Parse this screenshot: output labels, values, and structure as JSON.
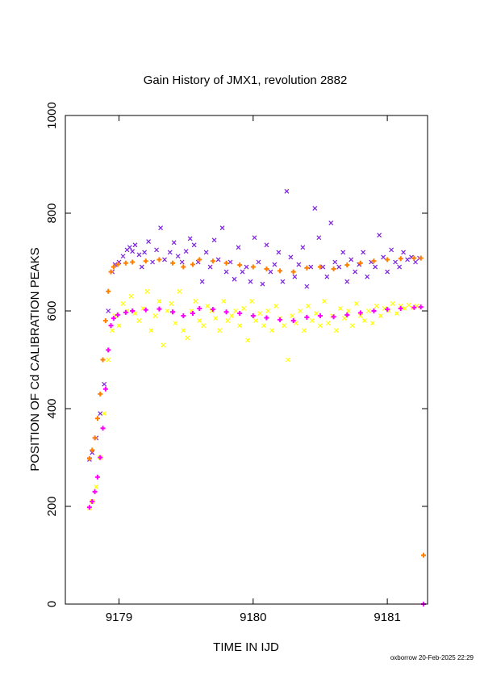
{
  "chart_data": {
    "type": "scatter",
    "title": "Gain History of JMX1, revolution 2882",
    "xlabel": "TIME IN IJD",
    "ylabel": "POSITION OF Cd CALIBRATION PEAKS",
    "footer": "oxborrow 20-Feb-2025 22:29",
    "xlim": [
      9178.6,
      9181.3
    ],
    "ylim": [
      0,
      1000
    ],
    "x_ticks": [
      9179,
      9180,
      9181
    ],
    "x_tick_labels": [
      "9179",
      "9180",
      "9181"
    ],
    "y_ticks": [
      0,
      200,
      400,
      600,
      800,
      1000
    ],
    "y_tick_labels": [
      "0",
      "200",
      "400",
      "600",
      "800",
      "1000"
    ],
    "grid": false,
    "series": [
      {
        "marker": "x",
        "color": "#7b1fe0",
        "points": [
          [
            9178.78,
            296
          ],
          [
            9178.8,
            310
          ],
          [
            9178.83,
            340
          ],
          [
            9178.86,
            390
          ],
          [
            9178.89,
            450
          ],
          [
            9178.92,
            600
          ],
          [
            9178.95,
            680
          ],
          [
            9178.97,
            695
          ],
          [
            9179.0,
            700
          ],
          [
            9179.03,
            712
          ],
          [
            9179.06,
            725
          ],
          [
            9179.08,
            730
          ],
          [
            9179.1,
            722
          ],
          [
            9179.12,
            735
          ],
          [
            9179.15,
            715
          ],
          [
            9179.17,
            690
          ],
          [
            9179.19,
            720
          ],
          [
            9179.22,
            742
          ],
          [
            9179.25,
            700
          ],
          [
            9179.28,
            725
          ],
          [
            9179.31,
            770
          ],
          [
            9179.34,
            705
          ],
          [
            9179.38,
            720
          ],
          [
            9179.41,
            740
          ],
          [
            9179.44,
            712
          ],
          [
            9179.47,
            700
          ],
          [
            9179.5,
            722
          ],
          [
            9179.53,
            748
          ],
          [
            9179.56,
            735
          ],
          [
            9179.59,
            700
          ],
          [
            9179.62,
            660
          ],
          [
            9179.65,
            720
          ],
          [
            9179.68,
            690
          ],
          [
            9179.71,
            745
          ],
          [
            9179.74,
            705
          ],
          [
            9179.77,
            770
          ],
          [
            9179.8,
            680
          ],
          [
            9179.83,
            700
          ],
          [
            9179.86,
            665
          ],
          [
            9179.89,
            730
          ],
          [
            9179.92,
            680
          ],
          [
            9179.95,
            690
          ],
          [
            9179.98,
            660
          ],
          [
            9180.01,
            750
          ],
          [
            9180.04,
            700
          ],
          [
            9180.07,
            655
          ],
          [
            9180.1,
            735
          ],
          [
            9180.13,
            680
          ],
          [
            9180.16,
            695
          ],
          [
            9180.19,
            720
          ],
          [
            9180.22,
            660
          ],
          [
            9180.25,
            845
          ],
          [
            9180.28,
            710
          ],
          [
            9180.31,
            670
          ],
          [
            9180.34,
            695
          ],
          [
            9180.37,
            730
          ],
          [
            9180.4,
            650
          ],
          [
            9180.43,
            690
          ],
          [
            9180.46,
            810
          ],
          [
            9180.49,
            750
          ],
          [
            9180.52,
            690
          ],
          [
            9180.55,
            670
          ],
          [
            9180.58,
            780
          ],
          [
            9180.61,
            700
          ],
          [
            9180.64,
            690
          ],
          [
            9180.67,
            720
          ],
          [
            9180.7,
            660
          ],
          [
            9180.73,
            705
          ],
          [
            9180.76,
            680
          ],
          [
            9180.79,
            695
          ],
          [
            9180.82,
            720
          ],
          [
            9180.85,
            670
          ],
          [
            9180.88,
            700
          ],
          [
            9180.91,
            690
          ],
          [
            9180.94,
            755
          ],
          [
            9180.97,
            710
          ],
          [
            9181.0,
            680
          ],
          [
            9181.03,
            725
          ],
          [
            9181.06,
            700
          ],
          [
            9181.09,
            690
          ],
          [
            9181.12,
            720
          ],
          [
            9181.15,
            705
          ],
          [
            9181.18,
            710
          ],
          [
            9181.21,
            700
          ],
          [
            9181.24,
            708
          ]
        ]
      },
      {
        "marker": "x",
        "color": "#ffff00",
        "points": [
          [
            9178.78,
            196
          ],
          [
            9178.8,
            210
          ],
          [
            9178.83,
            240
          ],
          [
            9178.86,
            300
          ],
          [
            9178.89,
            390
          ],
          [
            9178.92,
            500
          ],
          [
            9178.95,
            560
          ],
          [
            9178.97,
            590
          ],
          [
            9179.0,
            570
          ],
          [
            9179.03,
            615
          ],
          [
            9179.06,
            600
          ],
          [
            9179.09,
            630
          ],
          [
            9179.12,
            595
          ],
          [
            9179.15,
            580
          ],
          [
            9179.18,
            605
          ],
          [
            9179.21,
            640
          ],
          [
            9179.24,
            560
          ],
          [
            9179.27,
            590
          ],
          [
            9179.3,
            620
          ],
          [
            9179.33,
            530
          ],
          [
            9179.36,
            600
          ],
          [
            9179.39,
            615
          ],
          [
            9179.42,
            575
          ],
          [
            9179.45,
            640
          ],
          [
            9179.48,
            560
          ],
          [
            9179.51,
            545
          ],
          [
            9179.54,
            600
          ],
          [
            9179.57,
            620
          ],
          [
            9179.6,
            580
          ],
          [
            9179.63,
            570
          ],
          [
            9179.66,
            610
          ],
          [
            9179.69,
            600
          ],
          [
            9179.72,
            585
          ],
          [
            9179.75,
            560
          ],
          [
            9179.78,
            620
          ],
          [
            9179.81,
            580
          ],
          [
            9179.84,
            590
          ],
          [
            9179.87,
            600
          ],
          [
            9179.9,
            570
          ],
          [
            9179.93,
            605
          ],
          [
            9179.96,
            540
          ],
          [
            9179.99,
            620
          ],
          [
            9180.02,
            580
          ],
          [
            9180.05,
            595
          ],
          [
            9180.08,
            570
          ],
          [
            9180.11,
            600
          ],
          [
            9180.14,
            560
          ],
          [
            9180.17,
            610
          ],
          [
            9180.2,
            585
          ],
          [
            9180.23,
            570
          ],
          [
            9180.26,
            500
          ],
          [
            9180.29,
            590
          ],
          [
            9180.32,
            575
          ],
          [
            9180.35,
            600
          ],
          [
            9180.38,
            560
          ],
          [
            9180.41,
            610
          ],
          [
            9180.44,
            580
          ],
          [
            9180.47,
            595
          ],
          [
            9180.5,
            570
          ],
          [
            9180.53,
            620
          ],
          [
            9180.56,
            575
          ],
          [
            9180.59,
            590
          ],
          [
            9180.62,
            560
          ],
          [
            9180.65,
            605
          ],
          [
            9180.68,
            585
          ],
          [
            9180.71,
            600
          ],
          [
            9180.74,
            570
          ],
          [
            9180.77,
            615
          ],
          [
            9180.8,
            590
          ],
          [
            9180.83,
            580
          ],
          [
            9180.86,
            600
          ],
          [
            9180.89,
            575
          ],
          [
            9180.92,
            610
          ],
          [
            9180.95,
            590
          ],
          [
            9180.98,
            605
          ],
          [
            9181.01,
            600
          ],
          [
            9181.04,
            615
          ],
          [
            9181.07,
            595
          ],
          [
            9181.1,
            610
          ],
          [
            9181.13,
            605
          ],
          [
            9181.16,
            612
          ],
          [
            9181.19,
            606
          ],
          [
            9181.22,
            610
          ]
        ]
      },
      {
        "marker": "+",
        "color": "#ff7f00",
        "points": [
          [
            9178.78,
            298
          ],
          [
            9178.8,
            315
          ],
          [
            9178.82,
            340
          ],
          [
            9178.84,
            380
          ],
          [
            9178.86,
            430
          ],
          [
            9178.88,
            500
          ],
          [
            9178.9,
            580
          ],
          [
            9178.92,
            640
          ],
          [
            9178.94,
            680
          ],
          [
            9178.96,
            690
          ],
          [
            9178.99,
            695
          ],
          [
            9179.05,
            698
          ],
          [
            9179.1,
            700
          ],
          [
            9179.2,
            702
          ],
          [
            9179.3,
            705
          ],
          [
            9179.4,
            698
          ],
          [
            9179.48,
            690
          ],
          [
            9179.55,
            695
          ],
          [
            9179.6,
            705
          ],
          [
            9179.7,
            702
          ],
          [
            9179.8,
            698
          ],
          [
            9179.9,
            694
          ],
          [
            9180.0,
            690
          ],
          [
            9180.1,
            686
          ],
          [
            9180.2,
            682
          ],
          [
            9180.3,
            680
          ],
          [
            9180.4,
            688
          ],
          [
            9180.5,
            690
          ],
          [
            9180.6,
            686
          ],
          [
            9180.7,
            694
          ],
          [
            9180.8,
            698
          ],
          [
            9180.9,
            702
          ],
          [
            9181.0,
            705
          ],
          [
            9181.1,
            707
          ],
          [
            9181.2,
            708
          ],
          [
            9181.25,
            708
          ],
          [
            9181.27,
            100
          ]
        ]
      },
      {
        "marker": "+",
        "color": "#ff00ff",
        "points": [
          [
            9178.78,
            198
          ],
          [
            9178.8,
            210
          ],
          [
            9178.82,
            230
          ],
          [
            9178.84,
            260
          ],
          [
            9178.86,
            300
          ],
          [
            9178.88,
            360
          ],
          [
            9178.9,
            440
          ],
          [
            9178.92,
            520
          ],
          [
            9178.94,
            570
          ],
          [
            9178.96,
            585
          ],
          [
            9178.99,
            592
          ],
          [
            9179.05,
            597
          ],
          [
            9179.1,
            600
          ],
          [
            9179.2,
            602
          ],
          [
            9179.3,
            604
          ],
          [
            9179.4,
            598
          ],
          [
            9179.48,
            590
          ],
          [
            9179.55,
            595
          ],
          [
            9179.6,
            605
          ],
          [
            9179.7,
            603
          ],
          [
            9179.8,
            598
          ],
          [
            9179.9,
            595
          ],
          [
            9180.0,
            590
          ],
          [
            9180.1,
            586
          ],
          [
            9180.2,
            582
          ],
          [
            9180.3,
            580
          ],
          [
            9180.4,
            587
          ],
          [
            9180.5,
            590
          ],
          [
            9180.6,
            588
          ],
          [
            9180.7,
            592
          ],
          [
            9180.8,
            596
          ],
          [
            9180.9,
            600
          ],
          [
            9181.0,
            603
          ],
          [
            9181.1,
            605
          ],
          [
            9181.2,
            607
          ],
          [
            9181.25,
            608
          ],
          [
            9181.27,
            0
          ]
        ]
      }
    ]
  }
}
